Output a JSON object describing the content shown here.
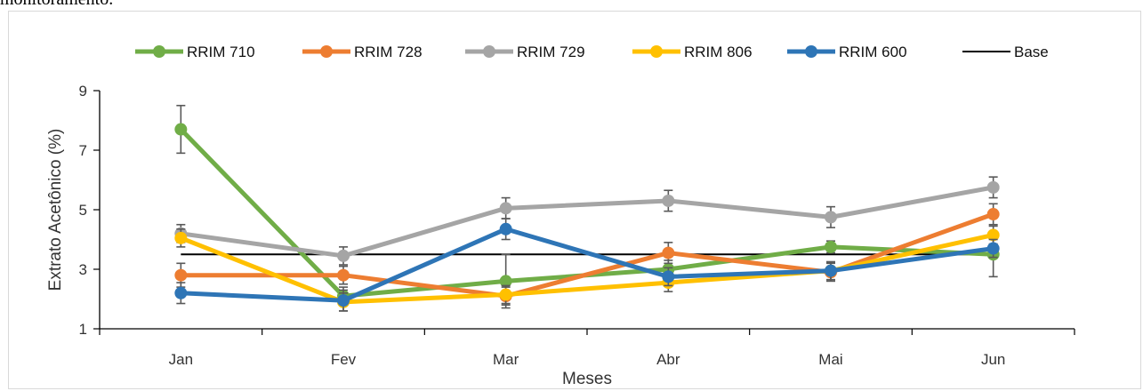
{
  "caption": "monitoramento.",
  "chart_data": {
    "type": "line",
    "title": "",
    "xlabel": "Meses",
    "ylabel": "Extrato Acetônico (%)",
    "categories": [
      "Jan",
      "Fev",
      "Mar",
      "Abr",
      "Mai",
      "Jun"
    ],
    "ylim": [
      1,
      9
    ],
    "yticks": [
      1,
      3,
      5,
      7,
      9
    ],
    "grid": false,
    "legend_position": "top",
    "series": [
      {
        "name": "RRIM 710",
        "color": "#70ad47",
        "values": [
          7.7,
          2.1,
          2.6,
          3.0,
          3.75,
          3.5
        ],
        "errors": [
          0.8,
          0.3,
          0.9,
          0.3,
          0.2,
          0.75
        ]
      },
      {
        "name": "RRIM 728",
        "color": "#ed7d31",
        "values": [
          2.8,
          2.8,
          2.1,
          3.55,
          2.9,
          4.85
        ],
        "errors": [
          0.4,
          0.3,
          0.3,
          0.35,
          0.3,
          0.35
        ]
      },
      {
        "name": "RRIM 729",
        "color": "#a5a5a5",
        "values": [
          4.2,
          3.45,
          5.05,
          5.3,
          4.75,
          5.75
        ],
        "errors": [
          0.3,
          0.3,
          0.35,
          0.35,
          0.35,
          0.35
        ]
      },
      {
        "name": "RRIM 806",
        "color": "#ffc000",
        "values": [
          4.05,
          1.9,
          2.15,
          2.55,
          2.95,
          4.15
        ],
        "errors": [
          0.3,
          0.3,
          0.3,
          0.3,
          0.3,
          0.3
        ]
      },
      {
        "name": "RRIM 600",
        "color": "#2e75b6",
        "values": [
          2.2,
          1.95,
          4.35,
          2.75,
          2.95,
          3.7
        ],
        "errors": [
          0.35,
          0.35,
          0.35,
          0.3,
          0.3,
          0.3
        ]
      }
    ],
    "baseline": {
      "name": "Base",
      "color": "#000000",
      "value": 3.5
    }
  }
}
